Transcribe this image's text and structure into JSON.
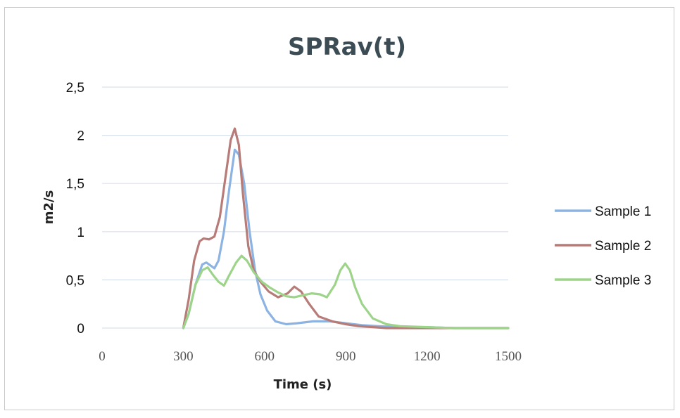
{
  "chart_data": {
    "type": "line",
    "title": "SPRav(t)",
    "xlabel": "Time (s)",
    "ylabel": "m2/s",
    "xlim": [
      0,
      1500
    ],
    "ylim": [
      0,
      2.5
    ],
    "x_ticks": [
      "0",
      "300",
      "600",
      "900",
      "1200",
      "1500"
    ],
    "y_ticks": [
      "0",
      "0,5",
      "1",
      "1,5",
      "2",
      "2,5"
    ],
    "grid": "horizontal",
    "legend_position": "right",
    "series": [
      {
        "name": "Sample 1",
        "color": "#8db3e2",
        "points": [
          [
            300,
            0
          ],
          [
            320,
            0.15
          ],
          [
            345,
            0.45
          ],
          [
            370,
            0.66
          ],
          [
            385,
            0.68
          ],
          [
            400,
            0.65
          ],
          [
            415,
            0.62
          ],
          [
            430,
            0.7
          ],
          [
            450,
            1.0
          ],
          [
            470,
            1.45
          ],
          [
            490,
            1.85
          ],
          [
            505,
            1.8
          ],
          [
            525,
            1.5
          ],
          [
            545,
            1.0
          ],
          [
            565,
            0.6
          ],
          [
            585,
            0.35
          ],
          [
            610,
            0.18
          ],
          [
            640,
            0.07
          ],
          [
            680,
            0.04
          ],
          [
            720,
            0.05
          ],
          [
            780,
            0.07
          ],
          [
            840,
            0.07
          ],
          [
            900,
            0.05
          ],
          [
            960,
            0.03
          ],
          [
            1020,
            0.02
          ],
          [
            1100,
            0.01
          ],
          [
            1200,
            0.01
          ],
          [
            1300,
            0.0
          ],
          [
            1400,
            0.0
          ],
          [
            1500,
            0.0
          ]
        ]
      },
      {
        "name": "Sample 2",
        "color": "#b77b78",
        "points": [
          [
            300,
            0
          ],
          [
            320,
            0.3
          ],
          [
            340,
            0.7
          ],
          [
            360,
            0.9
          ],
          [
            375,
            0.93
          ],
          [
            395,
            0.92
          ],
          [
            415,
            0.95
          ],
          [
            435,
            1.15
          ],
          [
            455,
            1.55
          ],
          [
            475,
            1.95
          ],
          [
            490,
            2.07
          ],
          [
            505,
            1.9
          ],
          [
            520,
            1.4
          ],
          [
            540,
            0.85
          ],
          [
            560,
            0.6
          ],
          [
            585,
            0.48
          ],
          [
            615,
            0.38
          ],
          [
            650,
            0.32
          ],
          [
            685,
            0.36
          ],
          [
            710,
            0.43
          ],
          [
            735,
            0.38
          ],
          [
            765,
            0.25
          ],
          [
            800,
            0.12
          ],
          [
            850,
            0.07
          ],
          [
            900,
            0.04
          ],
          [
            950,
            0.02
          ],
          [
            1000,
            0.01
          ],
          [
            1050,
            0.0
          ],
          [
            1100,
            0.0
          ],
          [
            1200,
            0.0
          ],
          [
            1300,
            0.0
          ],
          [
            1400,
            0.0
          ],
          [
            1500,
            0.0
          ]
        ]
      },
      {
        "name": "Sample 3",
        "color": "#9dd48a",
        "points": [
          [
            300,
            0
          ],
          [
            320,
            0.15
          ],
          [
            345,
            0.45
          ],
          [
            370,
            0.6
          ],
          [
            390,
            0.63
          ],
          [
            410,
            0.55
          ],
          [
            430,
            0.48
          ],
          [
            450,
            0.44
          ],
          [
            470,
            0.55
          ],
          [
            495,
            0.68
          ],
          [
            515,
            0.75
          ],
          [
            535,
            0.7
          ],
          [
            560,
            0.58
          ],
          [
            590,
            0.48
          ],
          [
            620,
            0.42
          ],
          [
            650,
            0.37
          ],
          [
            680,
            0.33
          ],
          [
            710,
            0.32
          ],
          [
            740,
            0.34
          ],
          [
            775,
            0.36
          ],
          [
            805,
            0.35
          ],
          [
            830,
            0.32
          ],
          [
            860,
            0.45
          ],
          [
            880,
            0.6
          ],
          [
            898,
            0.67
          ],
          [
            915,
            0.6
          ],
          [
            935,
            0.42
          ],
          [
            960,
            0.25
          ],
          [
            1000,
            0.1
          ],
          [
            1050,
            0.04
          ],
          [
            1100,
            0.02
          ],
          [
            1200,
            0.01
          ],
          [
            1300,
            0.0
          ],
          [
            1400,
            0.0
          ],
          [
            1500,
            0.0
          ]
        ]
      }
    ]
  }
}
